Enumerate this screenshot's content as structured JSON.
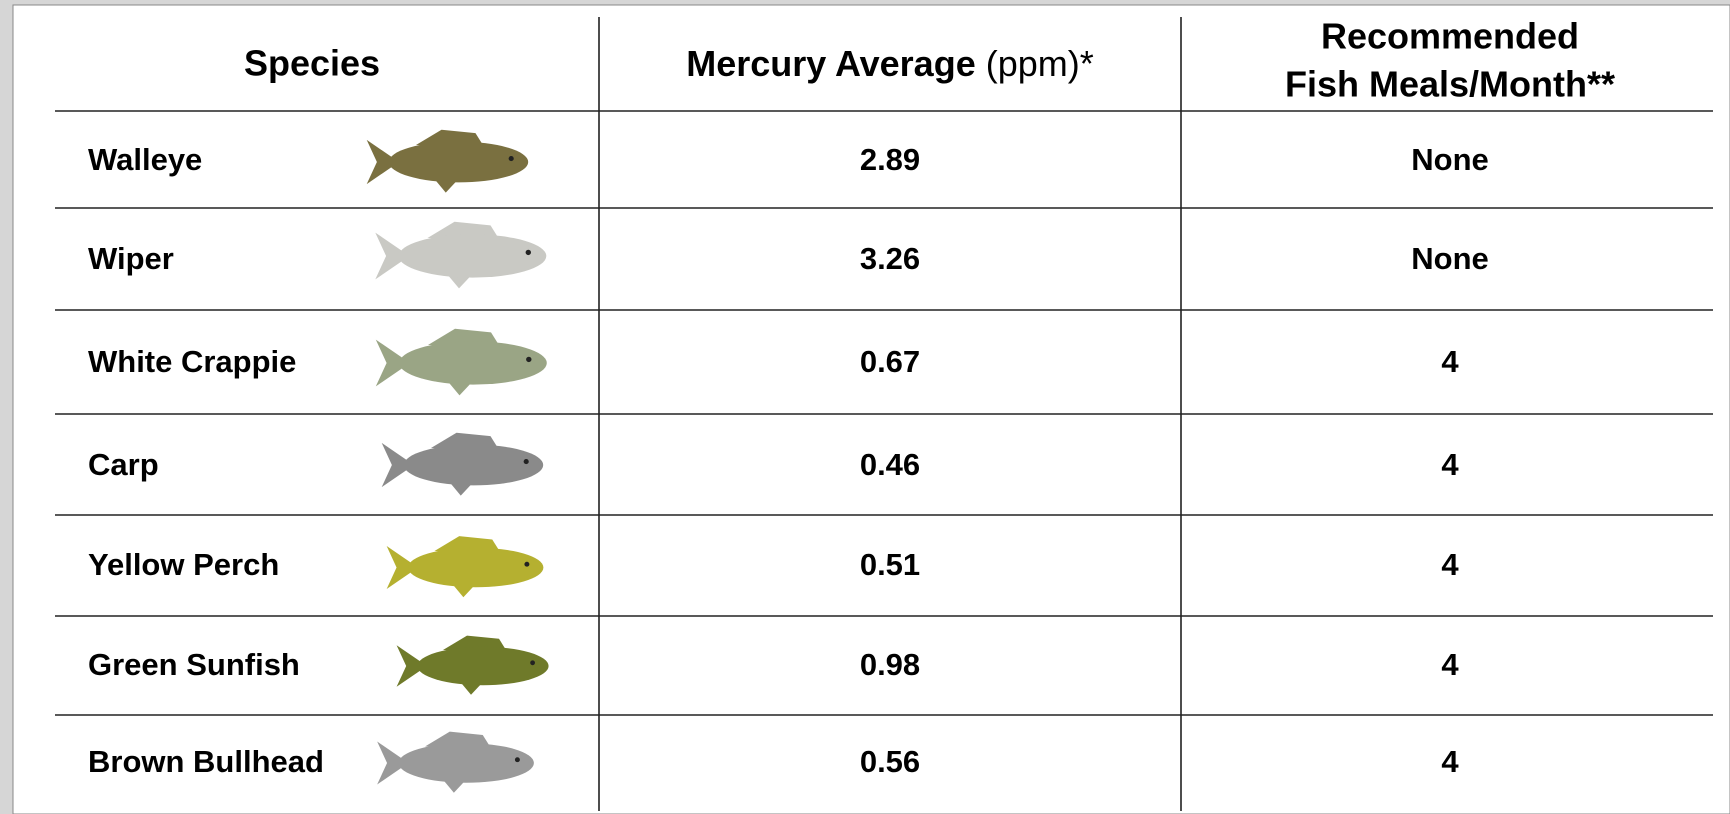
{
  "header": {
    "species": "Species",
    "mercury": {
      "bold": "Mercury Average",
      "unit": "(ppm)*"
    },
    "meals": [
      "Recommended",
      "Fish Meals/Month**"
    ]
  },
  "table": {
    "rows": [
      [
        "Walleye",
        "2.89",
        "None"
      ],
      [
        "Wiper",
        "3.26",
        "None"
      ],
      [
        "White Crappie",
        "0.67",
        "4"
      ],
      [
        "Carp",
        "0.46",
        "4"
      ],
      [
        "Yellow Perch",
        "0.51",
        "4"
      ],
      [
        "Green Sunfish",
        "0.98",
        "4"
      ],
      [
        "Brown Bullhead",
        "0.56",
        "4"
      ]
    ]
  }
}
